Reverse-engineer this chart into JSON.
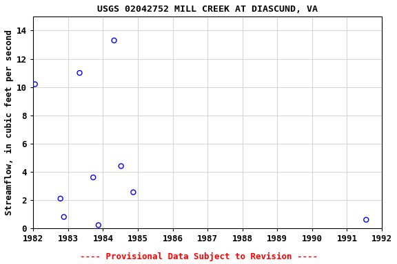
{
  "title": "USGS 02042752 MILL CREEK AT DIASCUND, VA",
  "ylabel": "Streamflow, in cubic feet per second",
  "x_data": [
    1982.05,
    1982.78,
    1982.88,
    1983.33,
    1983.72,
    1983.87,
    1984.32,
    1984.52,
    1984.87,
    1991.55
  ],
  "y_data": [
    10.2,
    2.1,
    0.8,
    11.0,
    3.6,
    0.22,
    13.3,
    4.4,
    2.55,
    0.6
  ],
  "xlim": [
    1982,
    1992
  ],
  "ylim": [
    0,
    15
  ],
  "xticks": [
    1982,
    1983,
    1984,
    1985,
    1986,
    1987,
    1988,
    1989,
    1990,
    1991,
    1992
  ],
  "yticks": [
    0,
    2,
    4,
    6,
    8,
    10,
    12,
    14
  ],
  "marker_color": "blue",
  "marker_size": 5,
  "grid_color": "#cccccc",
  "background_color": "#ffffff",
  "footnote": "---- Provisional Data Subject to Revision ----",
  "footnote_color": "red",
  "title_fontsize": 9.5,
  "axis_label_fontsize": 9,
  "tick_fontsize": 9,
  "footnote_fontsize": 9
}
